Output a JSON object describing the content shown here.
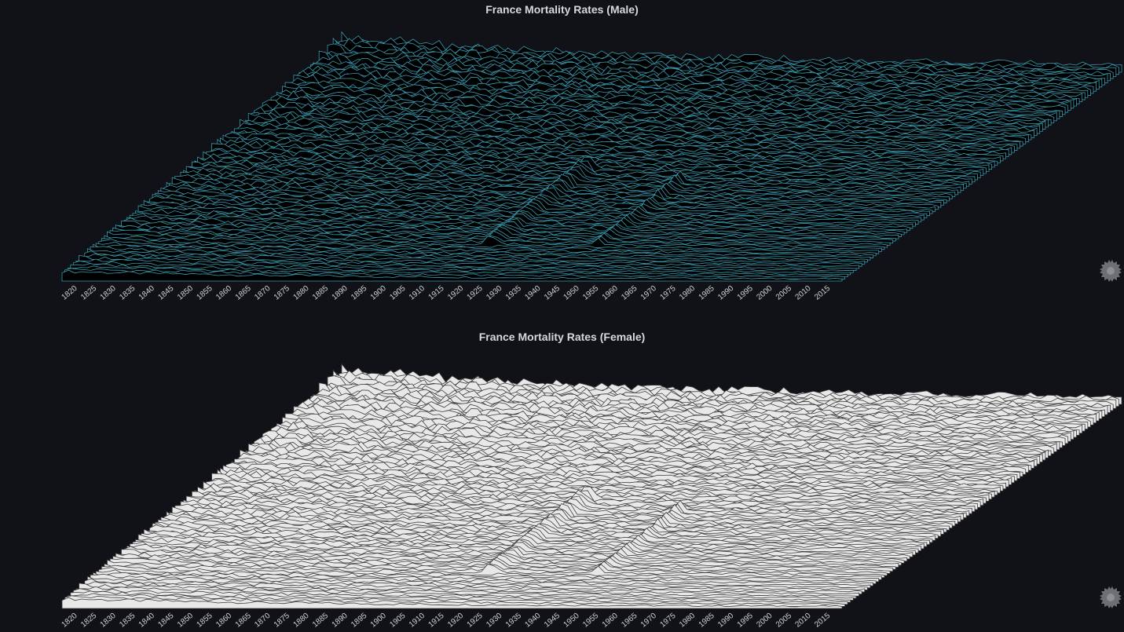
{
  "panels": [
    {
      "id": "male",
      "title": "France Mortality Rates (Male)",
      "line_color": "#3a9bb0",
      "fill_color": "#000000",
      "settings_icon": "gear-icon"
    },
    {
      "id": "female",
      "title": "France Mortality Rates (Female)",
      "line_color": "#3d3d3d",
      "fill_color": "#e8e8e8",
      "settings_icon": "gear-icon"
    }
  ],
  "chart_data": [
    {
      "type": "area",
      "title": "France Mortality Rates (Male)",
      "x_ticks": [
        "1820",
        "1825",
        "1830",
        "1835",
        "1840",
        "1845",
        "1850",
        "1855",
        "1860",
        "1865",
        "1870",
        "1875",
        "1880",
        "1885",
        "1890",
        "1895",
        "1900",
        "1905",
        "1910",
        "1915",
        "1920",
        "1925",
        "1930",
        "1935",
        "1940",
        "1945",
        "1950",
        "1955",
        "1960",
        "1965",
        "1970",
        "1975",
        "1980",
        "1985",
        "1990",
        "1995",
        "2000",
        "2005",
        "2010",
        "2015"
      ],
      "x_range": [
        1816,
        2018
      ],
      "grid": false,
      "legend": "none"
    },
    {
      "type": "area",
      "title": "France Mortality Rates (Female)",
      "x_ticks": [
        "1820",
        "1825",
        "1830",
        "1835",
        "1840",
        "1845",
        "1850",
        "1855",
        "1860",
        "1865",
        "1870",
        "1875",
        "1880",
        "1885",
        "1890",
        "1895",
        "1900",
        "1905",
        "1910",
        "1915",
        "1920",
        "1925",
        "1930",
        "1935",
        "1940",
        "1945",
        "1950",
        "1955",
        "1960",
        "1965",
        "1970",
        "1975",
        "1980",
        "1985",
        "1990",
        "1995",
        "2000",
        "2005",
        "2010",
        "2015"
      ],
      "x_range": [
        1816,
        2018
      ],
      "grid": false,
      "legend": "none"
    }
  ]
}
